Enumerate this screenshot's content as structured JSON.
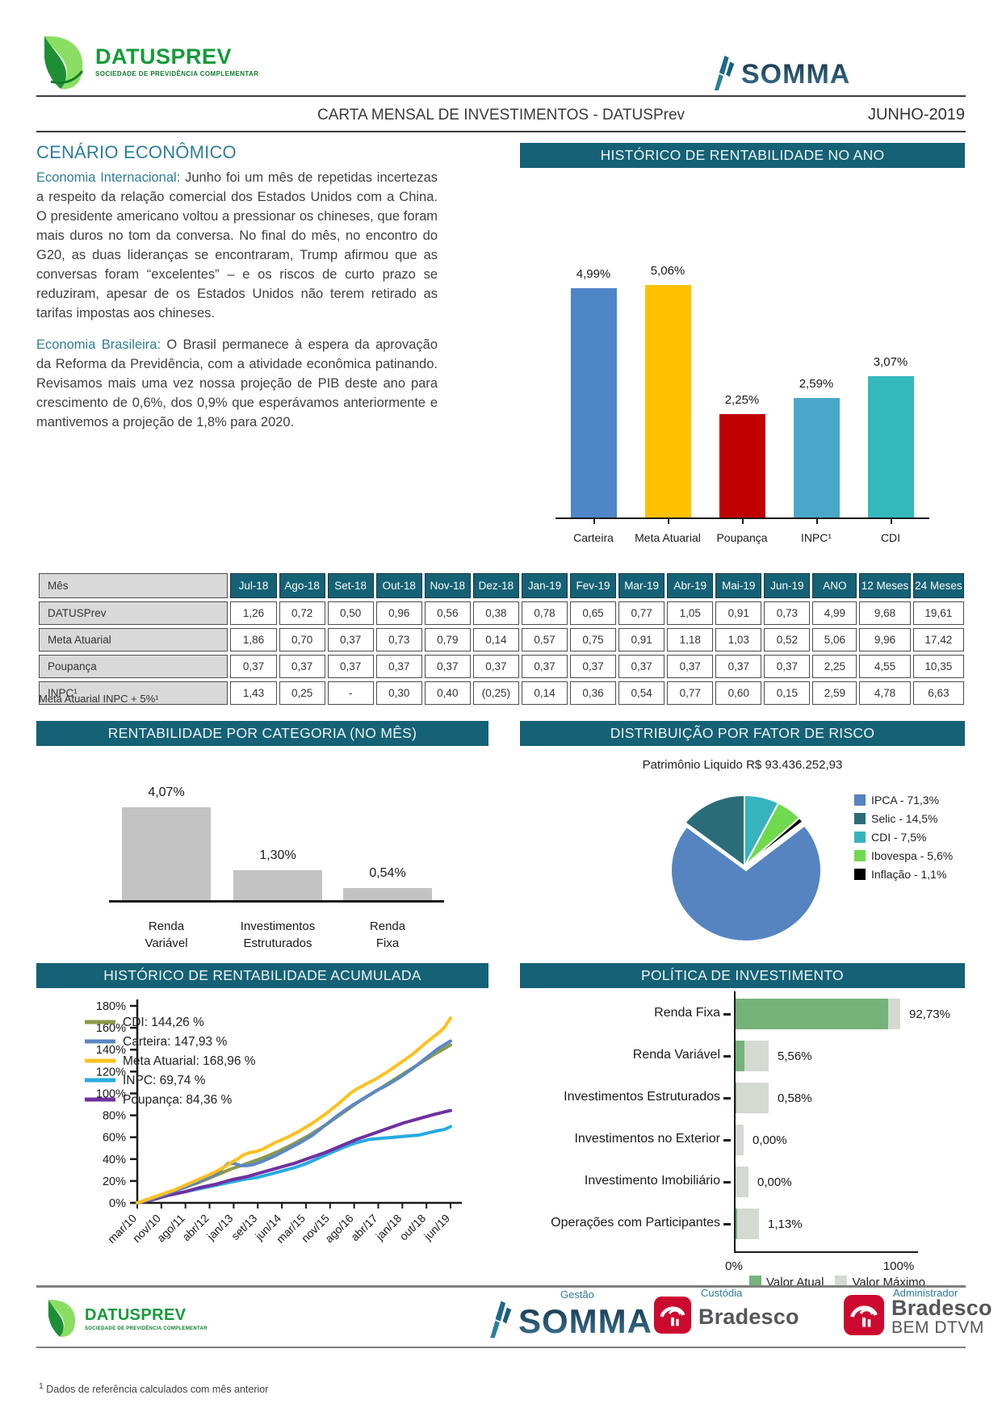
{
  "header": {
    "brand": "DATUSPREV",
    "brand_tagline": "SOCIEDADE DE PREVIDÊNCIA COMPLEMENTAR",
    "somma": "SOMMA",
    "title": "CARTA MENSAL DE INVESTIMENTOS - DATUSPrev",
    "period": "JUNHO-2019"
  },
  "scenario": {
    "title": "CENÁRIO ECONÔMICO",
    "p1_label": "Economia Internacional:",
    "p1": " Junho foi um mês de repetidas incertezas a respeito da relação comercial dos Estados Unidos com a China. O presidente americano voltou a pressionar os chineses, que foram mais duros no tom da conversa.  No final do mês, no encontro do G20, as duas lideranças se encontraram, Trump afirmou que as conversas foram “excelentes” – e os riscos de curto prazo se reduziram, apesar de os Estados Unidos não terem retirado as tarifas impostas aos chineses.",
    "p2_label": "Economia Brasileira:",
    "p2": " O Brasil permanece à espera da aprovação da Reforma da Previdência, com a atividade econômica patinando.  Revisamos mais uma vez nossa projeção de PIB deste ano para crescimento de 0,6%, dos 0,9% que esperávamos anteriormente e mantivemos a projeção de 1,8% para 2020."
  },
  "sections": {
    "annual": "HISTÓRICO DE RENTABILIDADE NO ANO",
    "category": "RENTABILIDADE POR CATEGORIA (NO MÊS)",
    "risk": "DISTRIBUIÇÃO POR FATOR DE RISCO",
    "accumulated": "HISTÓRICO DE RENTABILIDADE ACUMULADA",
    "policy": "POLÍTICA DE INVESTIMENTO"
  },
  "table": {
    "columns": [
      "Mês",
      "Jul-18",
      "Ago-18",
      "Set-18",
      "Out-18",
      "Nov-18",
      "Dez-18",
      "Jan-19",
      "Fev-19",
      "Mar-19",
      "Abr-19",
      "Mai-19",
      "Jun-19",
      "ANO",
      "12 Meses",
      "24 Meses"
    ],
    "rows": [
      {
        "label": "DATUSPrev",
        "values": [
          "1,26",
          "0,72",
          "0,50",
          "0,96",
          "0,56",
          "0,38",
          "0,78",
          "0,65",
          "0,77",
          "1,05",
          "0,91",
          "0,73",
          "4,99",
          "9,68",
          "19,61"
        ]
      },
      {
        "label": "Meta Atuarial",
        "values": [
          "1,86",
          "0,70",
          "0,37",
          "0,73",
          "0,79",
          "0,14",
          "0,57",
          "0,75",
          "0,91",
          "1,18",
          "1,03",
          "0,52",
          "5,06",
          "9,96",
          "17,42"
        ]
      },
      {
        "label": "Poupança",
        "values": [
          "0,37",
          "0,37",
          "0,37",
          "0,37",
          "0,37",
          "0,37",
          "0,37",
          "0,37",
          "0,37",
          "0,37",
          "0,37",
          "0,37",
          "2,25",
          "4,55",
          "10,35"
        ]
      },
      {
        "label": "INPC¹",
        "values": [
          "1,43",
          "0,25",
          "-",
          "0,30",
          "0,40",
          "(0,25)",
          "0,14",
          "0,36",
          "0,54",
          "0,77",
          "0,60",
          "0,15",
          "2,59",
          "4,78",
          "6,63"
        ]
      }
    ],
    "footnote": "Meta Atuarial INPC + 5%¹"
  },
  "chart_data": [
    {
      "id": "annual",
      "type": "bar",
      "title": "HISTÓRICO DE RENTABILIDADE NO ANO",
      "categories": [
        "Carteira",
        "Meta Atuarial",
        "Poupança",
        "INPC¹",
        "CDI"
      ],
      "values": [
        4.99,
        5.06,
        2.25,
        2.59,
        3.07
      ],
      "value_labels": [
        "4,99%",
        "5,06%",
        "2,25%",
        "2,59%",
        "3,07%"
      ],
      "colors": [
        "#4e86c8",
        "#ffc000",
        "#c00000",
        "#4ba7c9",
        "#33b8bc"
      ],
      "ylim": [
        0,
        6
      ]
    },
    {
      "id": "category",
      "type": "bar",
      "title": "RENTABILIDADE POR CATEGORIA (NO MÊS)",
      "categories": [
        [
          "Renda",
          "Variável"
        ],
        [
          "Investimentos",
          "Estruturados"
        ],
        [
          "Renda",
          "Fixa"
        ]
      ],
      "values": [
        4.07,
        1.3,
        0.54
      ],
      "value_labels": [
        "4,07%",
        "1,30%",
        "0,54%"
      ],
      "bar_color": "#c3c3c3",
      "ylim": [
        0,
        5
      ]
    },
    {
      "id": "risk",
      "type": "pie",
      "title": "DISTRIBUIÇÃO POR FATOR DE RISCO",
      "subtitle": "Patrimônio Liquido R$ 93.436.252,93",
      "slices": [
        {
          "label": "IPCA - 71,3%",
          "value": 71.3,
          "color": "#5584c0"
        },
        {
          "label": "Selic - 14,5%",
          "value": 14.5,
          "color": "#2a6d78"
        },
        {
          "label": "CDI - 7,5%",
          "value": 7.5,
          "color": "#36b3bd"
        },
        {
          "label": "Ibovespa - 5,6%",
          "value": 5.6,
          "color": "#70d94e"
        },
        {
          "label": "Inflação - 1,1%",
          "value": 1.1,
          "color": "#000000"
        }
      ],
      "draw_order": [
        2,
        3,
        4,
        0,
        1
      ],
      "legend_position": "right"
    },
    {
      "id": "accumulated",
      "type": "line",
      "title": "HISTÓRICO DE RENTABILIDADE ACUMULADA",
      "ylim": [
        0,
        180
      ],
      "ytick_step": 20,
      "ytick_labels": [
        "0%",
        "20%",
        "40%",
        "60%",
        "80%",
        "100%",
        "120%",
        "140%",
        "160%",
        "180%"
      ],
      "x_labels": [
        "mar/10",
        "nov/10",
        "ago/11",
        "abr/12",
        "jan/13",
        "set/13",
        "jun/14",
        "mar/15",
        "nov/15",
        "ago/16",
        "abr/17",
        "jan/18",
        "out/18",
        "jun/19"
      ],
      "series": [
        {
          "name": "CDI: 144,26 %",
          "color": "#8b9a47",
          "points": [
            [
              0,
              0
            ],
            [
              0.05,
              4
            ],
            [
              0.1,
              9
            ],
            [
              0.15,
              14
            ],
            [
              0.2,
              19
            ],
            [
              0.25,
              25
            ],
            [
              0.3,
              31
            ],
            [
              0.35,
              36
            ],
            [
              0.4,
              41
            ],
            [
              0.45,
              47
            ],
            [
              0.5,
              54
            ],
            [
              0.55,
              62
            ],
            [
              0.6,
              71
            ],
            [
              0.65,
              81
            ],
            [
              0.7,
              91
            ],
            [
              0.75,
              100
            ],
            [
              0.8,
              109
            ],
            [
              0.85,
              118
            ],
            [
              0.9,
              127
            ],
            [
              0.95,
              136
            ],
            [
              1,
              144.26
            ]
          ]
        },
        {
          "name": "Carteira: 147,93 %",
          "color": "#5b87c5",
          "points": [
            [
              0,
              0
            ],
            [
              0.05,
              4
            ],
            [
              0.1,
              9
            ],
            [
              0.15,
              14
            ],
            [
              0.2,
              20
            ],
            [
              0.25,
              26
            ],
            [
              0.27,
              31
            ],
            [
              0.29,
              36
            ],
            [
              0.31,
              36
            ],
            [
              0.33,
              34
            ],
            [
              0.35,
              34
            ],
            [
              0.37,
              35
            ],
            [
              0.4,
              38
            ],
            [
              0.44,
              43
            ],
            [
              0.48,
              49
            ],
            [
              0.52,
              55
            ],
            [
              0.56,
              62
            ],
            [
              0.6,
              71
            ],
            [
              0.64,
              80
            ],
            [
              0.68,
              88
            ],
            [
              0.72,
              95
            ],
            [
              0.76,
              102
            ],
            [
              0.8,
              108
            ],
            [
              0.84,
              115
            ],
            [
              0.88,
              123
            ],
            [
              0.92,
              132
            ],
            [
              0.96,
              141
            ],
            [
              1,
              147.93
            ]
          ]
        },
        {
          "name": "Meta Atuarial: 168,96 %",
          "color": "#ffc01e",
          "points": [
            [
              0,
              0
            ],
            [
              0.04,
              4
            ],
            [
              0.08,
              8
            ],
            [
              0.12,
              12
            ],
            [
              0.16,
              17
            ],
            [
              0.2,
              22
            ],
            [
              0.24,
              27
            ],
            [
              0.28,
              33
            ],
            [
              0.3,
              37
            ],
            [
              0.32,
              40
            ],
            [
              0.34,
              44
            ],
            [
              0.36,
              46
            ],
            [
              0.38,
              47
            ],
            [
              0.4,
              49
            ],
            [
              0.44,
              55
            ],
            [
              0.48,
              60
            ],
            [
              0.52,
              66
            ],
            [
              0.56,
              73
            ],
            [
              0.6,
              81
            ],
            [
              0.64,
              90
            ],
            [
              0.66,
              95
            ],
            [
              0.68,
              100
            ],
            [
              0.7,
              104
            ],
            [
              0.72,
              107
            ],
            [
              0.74,
              110
            ],
            [
              0.76,
              113
            ],
            [
              0.8,
              120
            ],
            [
              0.84,
              128
            ],
            [
              0.88,
              136
            ],
            [
              0.92,
              146
            ],
            [
              0.96,
              155
            ],
            [
              0.98,
              160
            ],
            [
              1,
              168.96
            ]
          ]
        },
        {
          "name": "INPC: 69,74 %",
          "color": "#27aae1",
          "points": [
            [
              0,
              0
            ],
            [
              0.05,
              3
            ],
            [
              0.1,
              7
            ],
            [
              0.15,
              10
            ],
            [
              0.2,
              13
            ],
            [
              0.25,
              16
            ],
            [
              0.3,
              19
            ],
            [
              0.35,
              22
            ],
            [
              0.38,
              23
            ],
            [
              0.42,
              26
            ],
            [
              0.46,
              29
            ],
            [
              0.5,
              32
            ],
            [
              0.54,
              36
            ],
            [
              0.58,
              41
            ],
            [
              0.62,
              46
            ],
            [
              0.66,
              51
            ],
            [
              0.7,
              55
            ],
            [
              0.74,
              58
            ],
            [
              0.78,
              59
            ],
            [
              0.82,
              60
            ],
            [
              0.86,
              61
            ],
            [
              0.9,
              62
            ],
            [
              0.93,
              64
            ],
            [
              0.96,
              66
            ],
            [
              0.98,
              67
            ],
            [
              1,
              69.74
            ]
          ]
        },
        {
          "name": "Poupança: 84,36 %",
          "color": "#7030a0",
          "points": [
            [
              0,
              0
            ],
            [
              0.05,
              3
            ],
            [
              0.1,
              7
            ],
            [
              0.15,
              10
            ],
            [
              0.2,
              14
            ],
            [
              0.25,
              17
            ],
            [
              0.3,
              21
            ],
            [
              0.35,
              24
            ],
            [
              0.4,
              28
            ],
            [
              0.45,
              32
            ],
            [
              0.5,
              36
            ],
            [
              0.55,
              41
            ],
            [
              0.6,
              46
            ],
            [
              0.65,
              52
            ],
            [
              0.7,
              58
            ],
            [
              0.75,
              63
            ],
            [
              0.8,
              68
            ],
            [
              0.85,
              73
            ],
            [
              0.9,
              77
            ],
            [
              0.95,
              81
            ],
            [
              1,
              84.36
            ]
          ]
        }
      ],
      "draw_order": [
        3,
        4,
        0,
        1,
        2
      ],
      "legend_position": "top-left"
    },
    {
      "id": "policy",
      "type": "hbar",
      "title": "POLÍTICA DE INVESTIMENTO",
      "rows": [
        {
          "label": "Renda Fixa",
          "value": 92.73,
          "value_label": "92,73%",
          "max": 100
        },
        {
          "label": "Renda Variável",
          "value": 5.56,
          "value_label": "5,56%",
          "max": 20
        },
        {
          "label": "Investimentos Estruturados",
          "value": 0.58,
          "value_label": "0,58%",
          "max": 20
        },
        {
          "label": "Investimentos no Exterior",
          "value": 0.0,
          "value_label": "0,00%",
          "max": 4.7
        },
        {
          "label": "Investimento Imobiliário",
          "value": 0.0,
          "value_label": "0,00%",
          "max": 7.8
        },
        {
          "label": "Operações com Participantes",
          "value": 1.13,
          "value_label": "1,13%",
          "max": 14.2
        }
      ],
      "x_axis_labels": [
        "0%",
        "100%"
      ],
      "xlim": [
        0,
        111
      ],
      "legend": [
        {
          "label": "Valor Atual",
          "color": "#76b37a"
        },
        {
          "label": "Valor Máximo",
          "color": "#d4dad2"
        }
      ]
    }
  ],
  "footer": {
    "gestao_label": "Gestão",
    "custodia_label": "Custódia",
    "admin_label": "Administrador",
    "somma": "SOMMA",
    "bradesco": "Bradesco",
    "bem_dtvm": "BEM DTVM",
    "brand": "DATUSPREV",
    "brand_tagline": "SOCIEDADE DE PREVIDÊNCIA COMPLEMENTAR",
    "footnote_sup": "1",
    "footnote": " Dados de referência calculados com mês anterior"
  }
}
